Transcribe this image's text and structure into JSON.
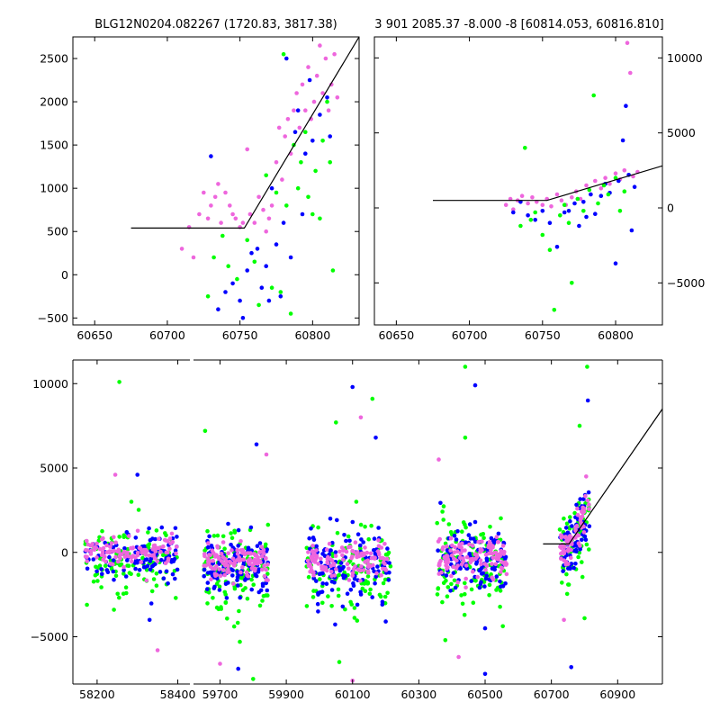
{
  "chart_data": [
    {
      "id": "top-left",
      "type": "scatter",
      "title": "BLG12N0204.082267 (1720.83, 3817.38)",
      "xlim": [
        60635,
        60832
      ],
      "ylim": [
        -580,
        2750
      ],
      "xticks": [
        60650,
        60700,
        60750,
        60800
      ],
      "yticks": [
        -500,
        0,
        500,
        1000,
        1500,
        2000,
        2500
      ],
      "yaxis_side": "left",
      "model_line": [
        [
          60675,
          540
        ],
        [
          60753,
          540
        ],
        [
          60832,
          2750
        ]
      ],
      "series": [
        {
          "color": "#ee66dd",
          "points": [
            [
              60710,
              300
            ],
            [
              60715,
              550
            ],
            [
              60718,
              200
            ],
            [
              60722,
              700
            ],
            [
              60725,
              950
            ],
            [
              60728,
              650
            ],
            [
              60730,
              800
            ],
            [
              60733,
              900
            ],
            [
              60735,
              1050
            ],
            [
              60737,
              600
            ],
            [
              60740,
              950
            ],
            [
              60743,
              800
            ],
            [
              60745,
              700
            ],
            [
              60747,
              650
            ],
            [
              60750,
              550
            ],
            [
              60752,
              600
            ],
            [
              60755,
              1450
            ],
            [
              60757,
              700
            ],
            [
              60760,
              600
            ],
            [
              60763,
              900
            ],
            [
              60766,
              750
            ],
            [
              60768,
              500
            ],
            [
              60770,
              650
            ],
            [
              60772,
              800
            ],
            [
              60775,
              1300
            ],
            [
              60777,
              1700
            ],
            [
              60779,
              1100
            ],
            [
              60781,
              1600
            ],
            [
              60783,
              1800
            ],
            [
              60785,
              1400
            ],
            [
              60787,
              1900
            ],
            [
              60789,
              2100
            ],
            [
              60791,
              1700
            ],
            [
              60793,
              2200
            ],
            [
              60795,
              1900
            ],
            [
              60797,
              2400
            ],
            [
              60799,
              1800
            ],
            [
              60801,
              2000
            ],
            [
              60803,
              2300
            ],
            [
              60805,
              2650
            ],
            [
              60807,
              2100
            ],
            [
              60809,
              2500
            ],
            [
              60811,
              1900
            ],
            [
              60813,
              2200
            ],
            [
              60815,
              2550
            ],
            [
              60817,
              2050
            ]
          ]
        },
        {
          "color": "#0000ff",
          "points": [
            [
              60730,
              1370
            ],
            [
              60735,
              -400
            ],
            [
              60740,
              -200
            ],
            [
              60745,
              -100
            ],
            [
              60750,
              -300
            ],
            [
              60752,
              -500
            ],
            [
              60755,
              50
            ],
            [
              60758,
              250
            ],
            [
              60762,
              300
            ],
            [
              60765,
              -150
            ],
            [
              60768,
              100
            ],
            [
              60770,
              -300
            ],
            [
              60772,
              1000
            ],
            [
              60775,
              350
            ],
            [
              60778,
              -250
            ],
            [
              60780,
              600
            ],
            [
              60782,
              2500
            ],
            [
              60785,
              200
            ],
            [
              60788,
              1650
            ],
            [
              60790,
              1900
            ],
            [
              60793,
              700
            ],
            [
              60795,
              1400
            ],
            [
              60798,
              2250
            ],
            [
              60800,
              1550
            ],
            [
              60805,
              1850
            ],
            [
              60810,
              2050
            ],
            [
              60812,
              1600
            ]
          ]
        },
        {
          "color": "#00ff00",
          "points": [
            [
              60728,
              -250
            ],
            [
              60732,
              200
            ],
            [
              60738,
              450
            ],
            [
              60742,
              100
            ],
            [
              60748,
              -50
            ],
            [
              60755,
              400
            ],
            [
              60760,
              150
            ],
            [
              60763,
              -350
            ],
            [
              60768,
              1150
            ],
            [
              60772,
              -150
            ],
            [
              60775,
              950
            ],
            [
              60778,
              -200
            ],
            [
              60780,
              2550
            ],
            [
              60782,
              800
            ],
            [
              60785,
              -450
            ],
            [
              60787,
              1500
            ],
            [
              60790,
              1000
            ],
            [
              60792,
              1300
            ],
            [
              60795,
              1650
            ],
            [
              60797,
              900
            ],
            [
              60800,
              700
            ],
            [
              60802,
              1200
            ],
            [
              60805,
              650
            ],
            [
              60807,
              1550
            ],
            [
              60810,
              2000
            ],
            [
              60812,
              1300
            ],
            [
              60814,
              50
            ]
          ]
        }
      ]
    },
    {
      "id": "top-right",
      "type": "scatter",
      "title": "3 901 2085.37 -8.000 -8 [60814.053, 60816.810]",
      "xlim": [
        60635,
        60832
      ],
      "ylim": [
        -7800,
        11400
      ],
      "xticks": [
        60650,
        60700,
        60750,
        60800
      ],
      "yticks": [
        -5000,
        0,
        5000,
        10000
      ],
      "yaxis_side": "right",
      "model_line": [
        [
          60675,
          500
        ],
        [
          60753,
          500
        ],
        [
          60832,
          2800
        ]
      ],
      "series": [
        {
          "color": "#ee66dd",
          "points": [
            [
              60725,
              200
            ],
            [
              60728,
              600
            ],
            [
              60730,
              -100
            ],
            [
              60733,
              500
            ],
            [
              60736,
              800
            ],
            [
              60740,
              300
            ],
            [
              60743,
              700
            ],
            [
              60746,
              400
            ],
            [
              60750,
              200
            ],
            [
              60753,
              600
            ],
            [
              60756,
              100
            ],
            [
              60760,
              900
            ],
            [
              60763,
              500
            ],
            [
              60766,
              200
            ],
            [
              60770,
              700
            ],
            [
              60773,
              1100
            ],
            [
              60776,
              600
            ],
            [
              60780,
              1500
            ],
            [
              60783,
              900
            ],
            [
              60786,
              1800
            ],
            [
              60790,
              1300
            ],
            [
              60793,
              2000
            ],
            [
              60796,
              1600
            ],
            [
              60800,
              2300
            ],
            [
              60803,
              1900
            ],
            [
              60806,
              2500
            ],
            [
              60808,
              11000
            ],
            [
              60810,
              9000
            ],
            [
              60812,
              2100
            ],
            [
              60815,
              2400
            ]
          ]
        },
        {
          "color": "#0000ff",
          "points": [
            [
              60730,
              -300
            ],
            [
              60735,
              400
            ],
            [
              60740,
              -500
            ],
            [
              60745,
              -800
            ],
            [
              60750,
              -200
            ],
            [
              60755,
              -1000
            ],
            [
              60760,
              -2600
            ],
            [
              60765,
              -300
            ],
            [
              60768,
              -200
            ],
            [
              60772,
              300
            ],
            [
              60775,
              -1200
            ],
            [
              60778,
              400
            ],
            [
              60780,
              -600
            ],
            [
              60783,
              900
            ],
            [
              60786,
              -400
            ],
            [
              60790,
              800
            ],
            [
              60793,
              1600
            ],
            [
              60796,
              1000
            ],
            [
              60800,
              -3700
            ],
            [
              60802,
              1800
            ],
            [
              60805,
              4500
            ],
            [
              60807,
              6800
            ],
            [
              60809,
              2200
            ],
            [
              60811,
              -1500
            ],
            [
              60813,
              1400
            ]
          ]
        },
        {
          "color": "#00ff00",
          "points": [
            [
              60735,
              -1200
            ],
            [
              60738,
              4000
            ],
            [
              60742,
              -800
            ],
            [
              60745,
              -300
            ],
            [
              60750,
              -1800
            ],
            [
              60755,
              -2800
            ],
            [
              60758,
              -6800
            ],
            [
              60762,
              -500
            ],
            [
              60765,
              200
            ],
            [
              60768,
              -1000
            ],
            [
              60770,
              -5000
            ],
            [
              60774,
              600
            ],
            [
              60778,
              -200
            ],
            [
              60782,
              1200
            ],
            [
              60785,
              7500
            ],
            [
              60788,
              300
            ],
            [
              60792,
              1500
            ],
            [
              60795,
              900
            ],
            [
              60800,
              2000
            ],
            [
              60803,
              -200
            ],
            [
              60806,
              1100
            ]
          ]
        }
      ]
    },
    {
      "id": "bottom",
      "type": "scatter",
      "title": "",
      "segments": [
        {
          "xlim": [
            58140,
            58430
          ],
          "xticks": [
            58200,
            58400
          ],
          "ticklabels": [
            "58200",
            "58400"
          ]
        },
        {
          "xlim": [
            59620,
            61035
          ],
          "xticks": [
            59700,
            59900,
            60100,
            60300,
            60500,
            60700,
            60900
          ],
          "ticklabels": [
            "59700",
            "59900",
            "60100",
            "60300",
            "60500",
            "60700",
            "60900"
          ]
        }
      ],
      "ylim": [
        -7800,
        11400
      ],
      "yticks": [
        -5000,
        0,
        5000,
        10000
      ],
      "yaxis_side": "left",
      "model_line": [
        [
          60675,
          500
        ],
        [
          60753,
          500
        ],
        [
          61035,
          8500
        ]
      ],
      "clusters": [
        {
          "seg": 0,
          "x": [
            58170,
            58400
          ],
          "n": 110,
          "sd": 700,
          "mean": 0,
          "outliers": [
            [
              58255,
              10100
            ],
            [
              58300,
              4600
            ],
            [
              58245,
              4600
            ],
            [
              58285,
              3000
            ],
            [
              58330,
              -4000
            ],
            [
              58350,
              -5800
            ],
            [
              58395,
              -2700
            ]
          ]
        },
        {
          "seg": 1,
          "x": [
            59650,
            59845
          ],
          "n": 120,
          "sd": 900,
          "mean": -600,
          "outliers": [
            [
              59655,
              7200
            ],
            [
              59810,
              6400
            ],
            [
              59840,
              5800
            ],
            [
              59800,
              -7500
            ],
            [
              59755,
              -6900
            ],
            [
              59700,
              -6600
            ],
            [
              59760,
              -5300
            ]
          ]
        },
        {
          "seg": 1,
          "x": [
            59960,
            60215
          ],
          "n": 120,
          "sd": 900,
          "mean": -600,
          "outliers": [
            [
              60050,
              7700
            ],
            [
              60100,
              9800
            ],
            [
              60125,
              8000
            ],
            [
              60160,
              9100
            ],
            [
              60170,
              6800
            ],
            [
              60100,
              -7600
            ],
            [
              60060,
              -6500
            ],
            [
              60200,
              -4100
            ]
          ]
        },
        {
          "seg": 1,
          "x": [
            60355,
            60565
          ],
          "n": 120,
          "sd": 1000,
          "mean": -300,
          "outliers": [
            [
              60440,
              11000
            ],
            [
              60470,
              9900
            ],
            [
              60360,
              5500
            ],
            [
              60440,
              6800
            ],
            [
              60500,
              -7200
            ],
            [
              60420,
              -6200
            ],
            [
              60380,
              -5200
            ],
            [
              60500,
              -4500
            ]
          ]
        },
        {
          "seg": 1,
          "x": [
            60725,
            60815
          ],
          "n": 70,
          "sd": 800,
          "mean": 300,
          "outliers": [
            [
              60808,
              11000
            ],
            [
              60810,
              9000
            ],
            [
              60805,
              4500
            ],
            [
              60800,
              -3900
            ],
            [
              60760,
              -6800
            ],
            [
              60738,
              -4000
            ],
            [
              60785,
              7500
            ]
          ]
        }
      ],
      "series_colors": [
        "#00ff00",
        "#0000ff",
        "#ee66dd"
      ]
    }
  ]
}
